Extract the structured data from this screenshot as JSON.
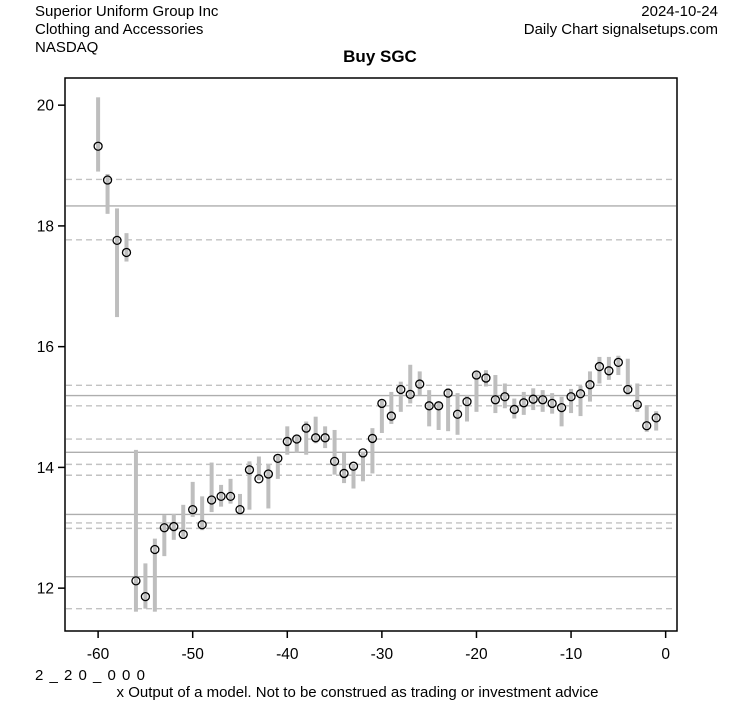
{
  "header": {
    "company": "Superior Uniform Group Inc",
    "sector": "Clothing and Accessories",
    "exchange": "NASDAQ",
    "date": "2024-10-24",
    "chart_type": "Daily Chart signalsetups.com"
  },
  "title": "Buy SGC",
  "footer": {
    "code": "2 _ 2 0 _ 0 0 0",
    "disclaimer": "x Output of a model. Not to be construed as trading or investment advice"
  },
  "chart_data": {
    "type": "scatter",
    "style": "daily high-low range bars with open-circle close markers",
    "title": "Buy SGC",
    "xlabel": "",
    "ylabel": "",
    "x_ticks": [
      -60,
      -50,
      -40,
      -30,
      -20,
      -10,
      0
    ],
    "y_ticks": [
      20,
      18,
      16,
      14,
      12
    ],
    "xlim": [
      -63.5,
      1.2
    ],
    "ylim": [
      11.29,
      20.45
    ],
    "grid": "horizontal support/resistance levels only",
    "legend": "none",
    "days": [
      -60,
      -59,
      -58,
      -57,
      -56,
      -55,
      -54,
      -53,
      -52,
      -51,
      -50,
      -49,
      -48,
      -47,
      -46,
      -45,
      -44,
      -43,
      -42,
      -41,
      -40,
      -39,
      -38,
      -37,
      -36,
      -35,
      -34,
      -33,
      -32,
      -31,
      -30,
      -29,
      -28,
      -27,
      -26,
      -25,
      -24,
      -23,
      -22,
      -21,
      -20,
      -19,
      -18,
      -17,
      -16,
      -15,
      -14,
      -13,
      -12,
      -11,
      -10,
      -9,
      -8,
      -7,
      -6,
      -5,
      -4,
      -3,
      -2,
      -1
    ],
    "high": [
      20.13,
      18.86,
      18.29,
      17.88,
      14.29,
      12.41,
      12.82,
      13.21,
      13.23,
      13.38,
      13.76,
      13.52,
      14.08,
      13.71,
      13.81,
      13.56,
      14.1,
      14.18,
      14.04,
      14.22,
      14.68,
      14.54,
      14.76,
      14.84,
      14.68,
      14.62,
      14.24,
      14.06,
      14.25,
      14.65,
      15.12,
      15.25,
      15.42,
      15.7,
      15.59,
      15.28,
      15.09,
      15.31,
      15.23,
      15.2,
      15.59,
      15.61,
      15.53,
      15.39,
      15.14,
      15.25,
      15.31,
      15.28,
      15.23,
      15.17,
      15.3,
      15.35,
      15.59,
      15.83,
      15.83,
      15.85,
      15.8,
      15.39,
      15.03,
      14.93
    ],
    "low": [
      18.9,
      18.2,
      16.49,
      17.41,
      11.61,
      11.66,
      11.61,
      12.53,
      12.8,
      12.85,
      13.18,
      12.96,
      13.26,
      13.35,
      13.4,
      13.24,
      13.3,
      13.79,
      13.32,
      13.81,
      14.21,
      14.24,
      14.21,
      14.4,
      14.32,
      13.88,
      13.74,
      13.65,
      13.77,
      13.9,
      14.57,
      14.72,
      14.92,
      15.06,
      15.2,
      14.68,
      14.62,
      14.6,
      14.54,
      14.76,
      14.92,
      15.34,
      14.9,
      14.98,
      14.81,
      14.87,
      14.95,
      14.92,
      14.89,
      14.68,
      14.9,
      14.85,
      15.09,
      15.39,
      15.45,
      15.53,
      15.2,
      14.92,
      14.59,
      14.61
    ],
    "close": [
      19.32,
      18.76,
      17.76,
      17.56,
      12.12,
      11.86,
      12.64,
      13.0,
      13.02,
      12.89,
      13.3,
      13.05,
      13.46,
      13.52,
      13.52,
      13.3,
      13.96,
      13.81,
      13.89,
      14.15,
      14.43,
      14.47,
      14.65,
      14.49,
      14.49,
      14.1,
      13.9,
      14.02,
      14.24,
      14.48,
      15.06,
      14.85,
      15.29,
      15.21,
      15.38,
      15.02,
      15.02,
      15.23,
      14.88,
      15.09,
      15.53,
      15.48,
      15.12,
      15.17,
      14.96,
      15.07,
      15.13,
      15.12,
      15.06,
      14.99,
      15.17,
      15.22,
      15.37,
      15.67,
      15.6,
      15.74,
      15.29,
      15.04,
      14.69,
      14.82
    ],
    "solid_levels": [
      18.33,
      15.19,
      14.25,
      13.22,
      12.19
    ],
    "dashed_levels": [
      18.77,
      17.77,
      15.36,
      15.02,
      14.47,
      14.05,
      13.87,
      13.08,
      12.99,
      11.66
    ],
    "colors": {
      "bar": "#bebebe",
      "marker_stroke": "#000000",
      "grid_solid": "#aeaeae",
      "grid_dashed": "#c2c2c2",
      "axis": "#000000",
      "background": "#ffffff"
    }
  }
}
